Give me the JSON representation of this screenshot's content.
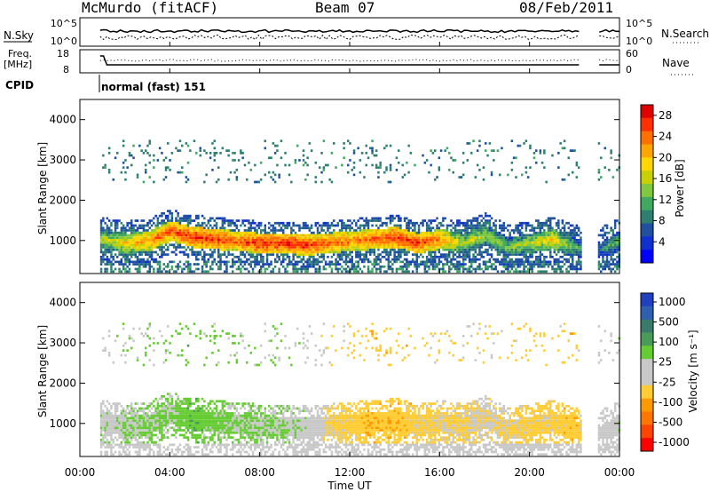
{
  "header": {
    "station": "McMurdo (fitACF)",
    "beam": "Beam 07",
    "date": "08/Feb/2011"
  },
  "noise_panel": {
    "left_label": "N.Sky",
    "left_ticks": [
      "10^5",
      "10^0"
    ],
    "right_ticks": [
      "10^5",
      "10^0"
    ],
    "right_label": "N.Search"
  },
  "freq_panel": {
    "left_label_1": "Freq.",
    "left_label_2": "[MHz]",
    "left_ticks": [
      "18",
      "8"
    ],
    "right_ticks": [
      "60",
      "0"
    ],
    "right_label": "Nave"
  },
  "cpid": {
    "label": "CPID",
    "value": "normal (fast) 151"
  },
  "axes": {
    "ylabel": "Slant Range [km]",
    "xlabel": "Time UT",
    "xticks": [
      "00:00",
      "04:00",
      "08:00",
      "12:00",
      "16:00",
      "20:00",
      "00:00"
    ],
    "yticks": [
      "1000",
      "2000",
      "3000",
      "4000"
    ]
  },
  "power_colorbar": {
    "label": "Power [dB]",
    "ticks": [
      "28",
      "24",
      "20",
      "16",
      "12",
      "8",
      "4"
    ],
    "colors": [
      "#e00000",
      "#ff3000",
      "#ff7000",
      "#ffa500",
      "#ffd700",
      "#c8d000",
      "#7fc840",
      "#40a860",
      "#2f7f70",
      "#2050a0",
      "#1030d0",
      "#0000ff"
    ]
  },
  "velocity_colorbar": {
    "label": "Velocity [m s⁻¹]",
    "ticks": [
      "1000",
      "500",
      "100",
      "25",
      "-25",
      "-100",
      "-500",
      "-1000"
    ],
    "colors": [
      "#2040c0",
      "#2e5fb0",
      "#3a7a6a",
      "#4a9a5a",
      "#66cc33",
      "#c8c8c8",
      "#c8c8c8",
      "#ffcc33",
      "#ff9900",
      "#ff7700",
      "#ff4400",
      "#ff0000"
    ]
  },
  "chart_data": {
    "type": "heatmap",
    "title": "McMurdo (fitACF)",
    "xlabel": "Time UT",
    "ylabel": "Slant Range [km]",
    "xlim": [
      0,
      24
    ],
    "ylim": [
      180,
      4500
    ],
    "power_scale": [
      0,
      30
    ],
    "velocity_scale": [
      -1000,
      1000
    ],
    "power_echo_band": {
      "hours": [
        1,
        2,
        3,
        4,
        5,
        6,
        7,
        8,
        9,
        10,
        11,
        12,
        13,
        14,
        15,
        16,
        17,
        18,
        19,
        20,
        21,
        22,
        23,
        24
      ],
      "center_range_km": [
        1000,
        900,
        950,
        1200,
        1050,
        1000,
        950,
        900,
        900,
        850,
        900,
        950,
        1000,
        1050,
        900,
        1000,
        900,
        1100,
        800,
        900,
        1000,
        800,
        700,
        1000
      ],
      "peak_power_db": [
        16,
        20,
        24,
        26,
        28,
        28,
        26,
        28,
        28,
        28,
        26,
        24,
        26,
        28,
        28,
        24,
        16,
        16,
        14,
        16,
        20,
        12,
        8,
        14
      ]
    },
    "velocity_echo_band": {
      "hours": [
        1,
        2,
        3,
        4,
        5,
        6,
        7,
        8,
        9,
        10,
        11,
        12,
        13,
        14,
        15,
        16,
        17,
        18,
        19,
        20,
        21,
        22,
        23,
        24
      ],
      "velocity_m_s": [
        100,
        150,
        200,
        200,
        300,
        250,
        200,
        200,
        150,
        100,
        -200,
        -250,
        -300,
        -300,
        -250,
        -200,
        -200,
        -150,
        -200,
        -250,
        -250,
        -300,
        50,
        100
      ]
    }
  }
}
